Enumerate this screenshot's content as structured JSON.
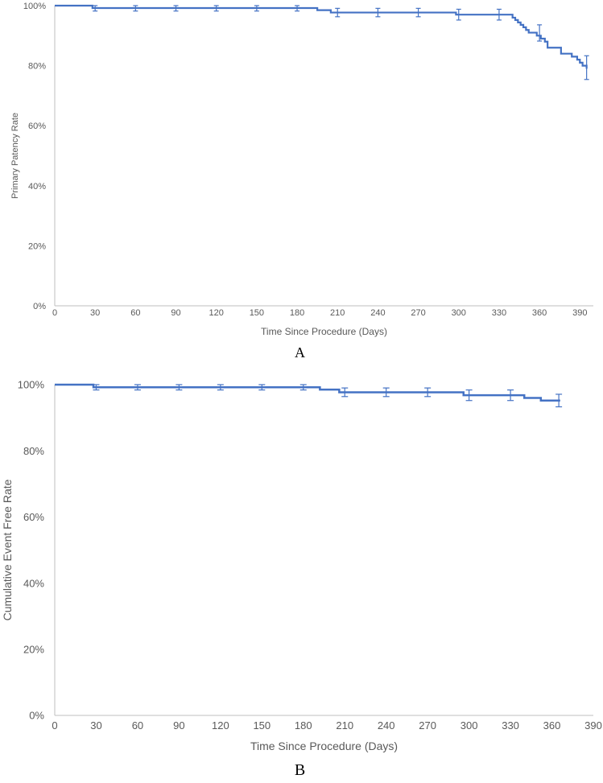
{
  "colors": {
    "series": "#4472C4",
    "axis": "#bfbfbf",
    "text": "#595959"
  },
  "chart_data": [
    {
      "type": "line",
      "panel_label": "A",
      "xlabel": "Time Since Procedure (Days)",
      "ylabel": "Primary Patency Rate",
      "xlim": [
        0,
        400
      ],
      "ylim": [
        0,
        100
      ],
      "x_ticks": [
        0,
        30,
        60,
        90,
        120,
        150,
        180,
        210,
        240,
        270,
        300,
        330,
        360,
        390
      ],
      "y_ticks": [
        "0%",
        "20%",
        "40%",
        "60%",
        "80%",
        "100%"
      ],
      "grid": false,
      "line_style": "step",
      "series": [
        {
          "x": [
            0,
            28,
            195,
            205,
            298,
            340,
            342,
            344,
            346,
            348,
            350,
            352,
            358,
            361,
            364,
            366,
            376,
            384,
            388,
            390,
            392,
            395
          ],
          "y": [
            100,
            99.2,
            98.5,
            97.7,
            97.0,
            96.0,
            95.2,
            94.4,
            93.6,
            92.8,
            91.9,
            91.0,
            90.0,
            89.0,
            88.0,
            86.0,
            84.0,
            83.0,
            82.0,
            81.0,
            80.0,
            79.0
          ]
        }
      ],
      "error_bars": [
        {
          "x": 30,
          "y": 99.2,
          "low": 98.2,
          "high": 100
        },
        {
          "x": 60,
          "y": 99.2,
          "low": 98.2,
          "high": 100
        },
        {
          "x": 90,
          "y": 99.2,
          "low": 98.2,
          "high": 100
        },
        {
          "x": 120,
          "y": 99.2,
          "low": 98.2,
          "high": 100
        },
        {
          "x": 150,
          "y": 99.2,
          "low": 98.2,
          "high": 100
        },
        {
          "x": 180,
          "y": 99.2,
          "low": 98.2,
          "high": 100
        },
        {
          "x": 210,
          "y": 97.7,
          "low": 96.3,
          "high": 99.1
        },
        {
          "x": 240,
          "y": 97.7,
          "low": 96.3,
          "high": 99.1
        },
        {
          "x": 270,
          "y": 97.7,
          "low": 96.3,
          "high": 99.1
        },
        {
          "x": 300,
          "y": 97.0,
          "low": 95.2,
          "high": 98.8
        },
        {
          "x": 330,
          "y": 97.0,
          "low": 95.2,
          "high": 98.8
        },
        {
          "x": 360,
          "y": 91.0,
          "low": 88.2,
          "high": 93.6
        },
        {
          "x": 395,
          "y": 79.3,
          "low": 75.4,
          "high": 83.3
        }
      ]
    },
    {
      "type": "line",
      "panel_label": "B",
      "xlabel": "Time Since Procedure (Days)",
      "ylabel": "Cumulative Event Free Rate",
      "xlim": [
        0,
        390
      ],
      "ylim": [
        0,
        100
      ],
      "x_ticks": [
        0,
        30,
        60,
        90,
        120,
        150,
        180,
        210,
        240,
        270,
        300,
        330,
        360,
        390
      ],
      "y_ticks": [
        "0%",
        "20%",
        "40%",
        "60%",
        "80%",
        "100%"
      ],
      "grid": false,
      "line_style": "step",
      "series": [
        {
          "x": [
            0,
            28,
            192,
            206,
            296,
            340,
            352,
            366
          ],
          "y": [
            100,
            99.2,
            98.5,
            97.7,
            96.8,
            96.0,
            95.2,
            95.2
          ]
        }
      ],
      "error_bars": [
        {
          "x": 30,
          "y": 99.2,
          "low": 98.4,
          "high": 100
        },
        {
          "x": 60,
          "y": 99.2,
          "low": 98.4,
          "high": 100
        },
        {
          "x": 90,
          "y": 99.2,
          "low": 98.4,
          "high": 100
        },
        {
          "x": 120,
          "y": 99.2,
          "low": 98.4,
          "high": 100
        },
        {
          "x": 150,
          "y": 99.2,
          "low": 98.4,
          "high": 100
        },
        {
          "x": 180,
          "y": 99.2,
          "low": 98.4,
          "high": 100
        },
        {
          "x": 210,
          "y": 97.7,
          "low": 96.4,
          "high": 99.0
        },
        {
          "x": 240,
          "y": 97.7,
          "low": 96.4,
          "high": 99.0
        },
        {
          "x": 270,
          "y": 97.7,
          "low": 96.4,
          "high": 99.0
        },
        {
          "x": 300,
          "y": 96.8,
          "low": 95.2,
          "high": 98.4
        },
        {
          "x": 330,
          "y": 96.8,
          "low": 95.2,
          "high": 98.4
        },
        {
          "x": 365,
          "y": 95.2,
          "low": 93.3,
          "high": 97.1
        }
      ]
    }
  ]
}
